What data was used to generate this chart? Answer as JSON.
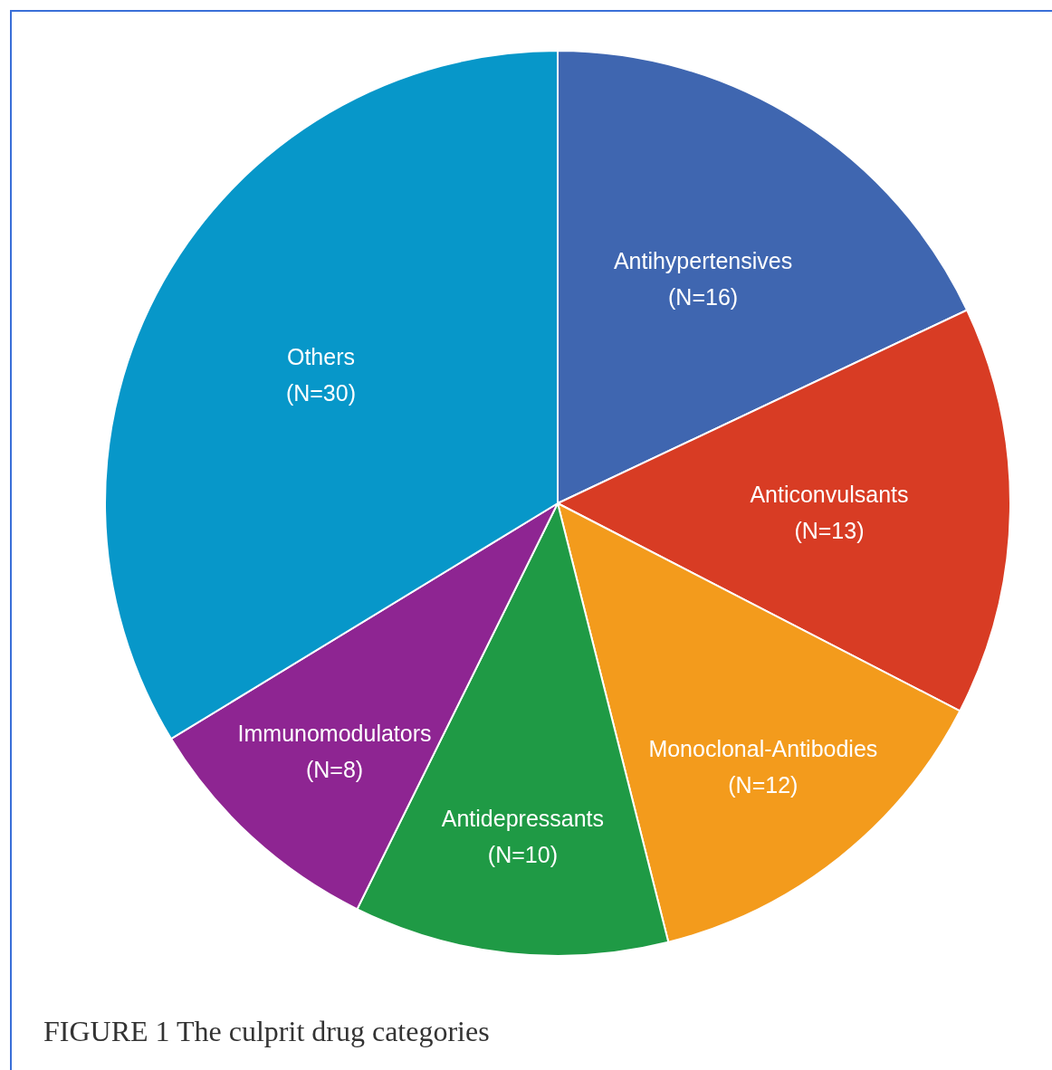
{
  "chart_data": {
    "type": "pie",
    "title": "FIGURE 1 The culprit drug categories",
    "categories": [
      "Antihypertensives",
      "Anticonvulsants",
      "Monoclonal-Antibodies",
      "Antidepressants",
      "Immunomodulators",
      "Others"
    ],
    "values": [
      16,
      13,
      12,
      10,
      8,
      30
    ],
    "value_labels": [
      "(N=16)",
      "(N=13)",
      "(N=12)",
      "(N=10)",
      "(N=8)",
      "(N=30)"
    ],
    "colors": [
      "#3f66b0",
      "#d83c24",
      "#f39b1c",
      "#1f9a45",
      "#8e2592",
      "#0797c9"
    ]
  }
}
